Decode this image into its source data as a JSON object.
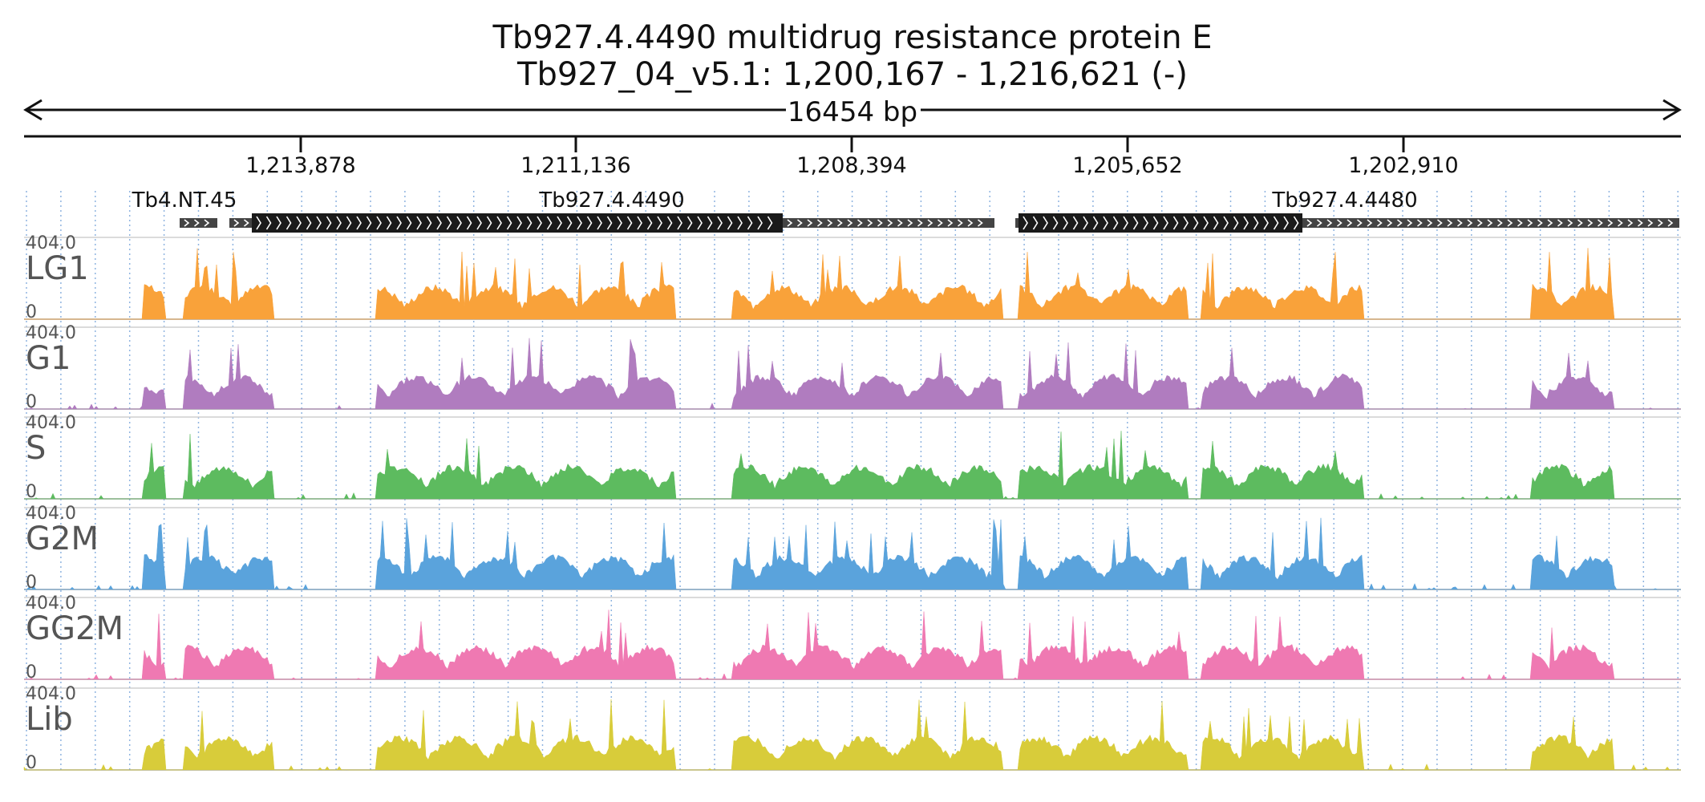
{
  "header": {
    "gene_title": "Tb927.4.4490  multidrug resistance protein E",
    "locus": "Tb927_04_v5.1: 1,200,167 - 1,216,621 (-)"
  },
  "ruler": {
    "span_label": "16454 bp",
    "ticks": [
      "1,213,878",
      "1,211,136",
      "1,208,394",
      "1,205,652",
      "1,202,910"
    ]
  },
  "genes": [
    {
      "label": "Tb4.NT.45"
    },
    {
      "label": "Tb927.4.4490"
    },
    {
      "label": "Tb927.4.4480"
    }
  ],
  "tracks": [
    {
      "name": "LG1",
      "max_label": "404.0",
      "min_label": "0",
      "color": "#f9a23a"
    },
    {
      "name": "G1",
      "max_label": "404.0",
      "min_label": "0",
      "color": "#b07cbf"
    },
    {
      "name": "S",
      "max_label": "404.0",
      "min_label": "0",
      "color": "#5dbb5f"
    },
    {
      "name": "G2M",
      "max_label": "404.0",
      "min_label": "0",
      "color": "#5aa3dc"
    },
    {
      "name": "GG2M",
      "max_label": "404.0",
      "min_label": "0",
      "color": "#ef79b2"
    },
    {
      "name": "Lib",
      "max_label": "404.0",
      "min_label": "0",
      "color": "#d8cc3a"
    }
  ],
  "colors": {
    "gene_cds": "#1a1a1a",
    "gene_utr": "#444444",
    "grid": "#8fb4e0",
    "axis": "#111111"
  }
}
